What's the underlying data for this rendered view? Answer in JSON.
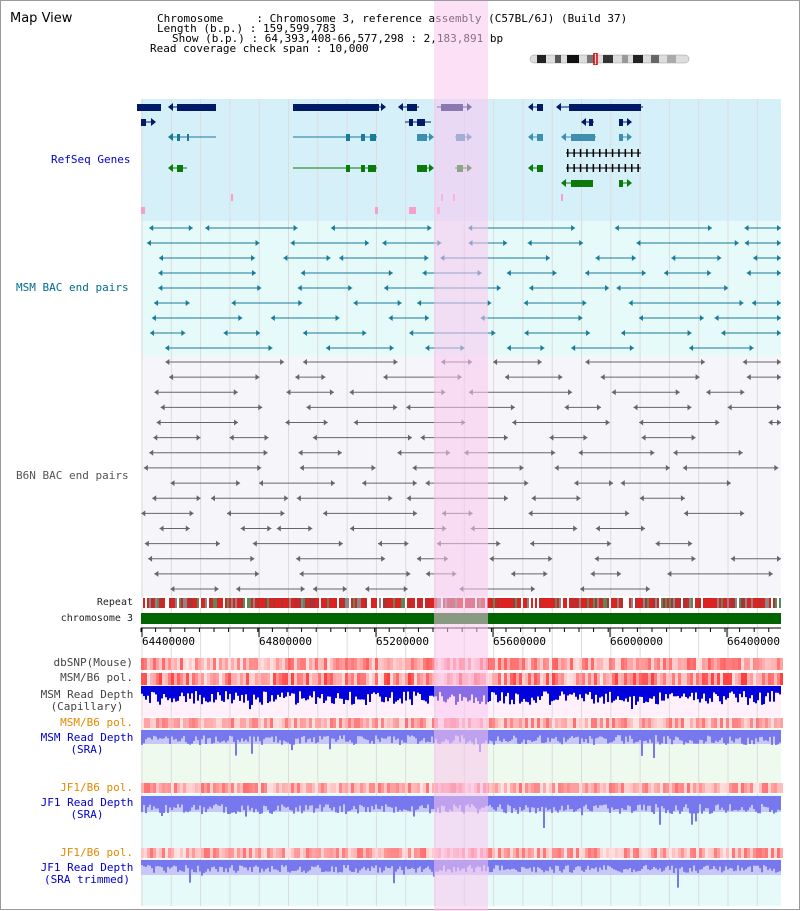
{
  "title": "Map View",
  "info": {
    "chromosome_label": "Chromosome",
    "chromosome_value": "Chromosome 3, reference assembly (C57BL/6J) (Build 37)",
    "length_label": "Length (b.p.)",
    "length_value": "159,599,783",
    "show_label": "Show (b.p.)",
    "show_value": "64,393,408-66,577,298 : 2,183,891 bp",
    "coverage_label": "Read coverage check span",
    "coverage_value": "10,000"
  },
  "tracks": {
    "refseq": "RefSeq Genes",
    "msm_bac": "MSM BAC end pairs",
    "b6n_bac": "B6N BAC end pairs",
    "repeat": "Repeat",
    "chromosome": "chromosome 3",
    "dbsnp": "dbSNP(Mouse)",
    "msm_b6_pol": "MSM/B6 pol.",
    "msm_read_depth_cap": "MSM Read Depth\n(Capillary)",
    "msm_b6_pol2": "MSM/B6 pol.",
    "msm_read_depth_sra": "MSM Read Depth\n(SRA)",
    "jf1_b6_pol": "JF1/B6 pol.",
    "jf1_read_depth_sra": "JF1 Read Depth\n(SRA)",
    "jf1_b6_pol2": "JF1/B6 pol.",
    "jf1_read_depth_trim": "JF1 Read Depth\n(SRA trimmed)"
  },
  "axis": {
    "ticks": [
      "64400000",
      "64800000",
      "65200000",
      "65600000",
      "66000000",
      "66400000"
    ]
  },
  "colors": {
    "refseq_bg": "#d6f0fa",
    "msm_bg": "#e6fafa",
    "b6n_bg": "#f6f6fa",
    "highlight": "#f9c6ef",
    "gene_dark": "#001a66",
    "gene_mid": "#3d8fb0",
    "gene_green": "#0b7a0b",
    "bac_teal": "#1a7a99",
    "bac_gray": "#666666",
    "chrom_green": "#006400",
    "depth_blue": "#0000dd",
    "depth_sra": "#7777ee"
  },
  "icons": {
    "ideogram": "chromosome-ideogram-icon"
  }
}
